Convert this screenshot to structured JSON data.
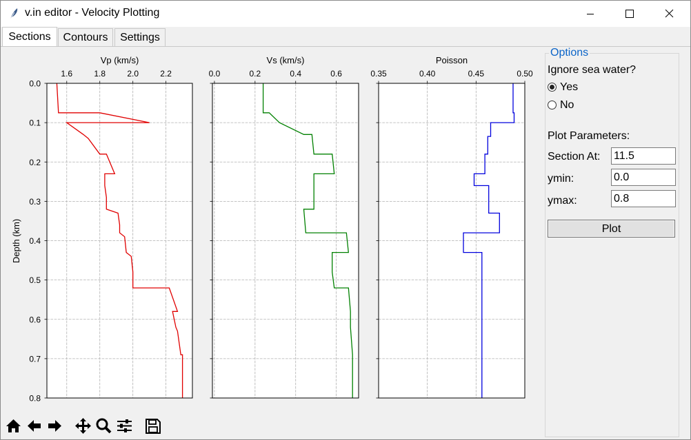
{
  "window": {
    "title": "v.in editor - Velocity Plotting",
    "icon": "feather-icon",
    "controls": [
      "minimize-icon",
      "maximize-icon",
      "close-icon"
    ]
  },
  "tabs": [
    {
      "label": "Sections",
      "active": true
    },
    {
      "label": "Contours",
      "active": false
    },
    {
      "label": "Settings",
      "active": false
    }
  ],
  "options": {
    "legend": "Options",
    "ignore_sea_water_label": "Ignore sea water?",
    "radio_yes": "Yes",
    "radio_no": "No",
    "selected": "Yes",
    "plot_params_label": "Plot Parameters:",
    "section_at_label": "Section At:",
    "section_at_value": "11.5",
    "ymin_label": "ymin:",
    "ymin_value": "0.0",
    "ymax_label": "ymax:",
    "ymax_value": "0.8",
    "plot_button": "Plot"
  },
  "toolbar": [
    "home-icon",
    "back-arrow-icon",
    "forward-arrow-icon",
    "pan-icon",
    "zoom-icon",
    "configure-subplots-icon",
    "save-icon"
  ],
  "chart_data": [
    {
      "type": "line",
      "title": "Vp (km/s)",
      "xlabel": "Vp (km/s)",
      "ylabel": "Depth (km)",
      "xlim": [
        1.48,
        2.36
      ],
      "ylim": [
        0.8,
        0.0
      ],
      "xticks": [
        "1.6",
        "1.8",
        "2.0",
        "2.2"
      ],
      "xtick_values": [
        1.6,
        1.8,
        2.0,
        2.2
      ],
      "yticks": [
        "0.0",
        "0.1",
        "0.2",
        "0.3",
        "0.4",
        "0.5",
        "0.6",
        "0.7",
        "0.8"
      ],
      "grid": true,
      "color": "#e00000",
      "series": [
        {
          "x": [
            1.54,
            1.55,
            1.8,
            2.1,
            1.6,
            1.7,
            1.73,
            1.8,
            1.84,
            1.89,
            1.83,
            1.83,
            1.84,
            1.84,
            1.91,
            1.92,
            1.92,
            1.95,
            1.96,
            1.99,
            2.0,
            2.0,
            2.22,
            2.27,
            2.24,
            2.26,
            2.27,
            2.29,
            2.3,
            2.3
          ],
          "y": [
            0.0,
            0.075,
            0.075,
            0.1,
            0.1,
            0.13,
            0.14,
            0.18,
            0.18,
            0.23,
            0.23,
            0.26,
            0.29,
            0.32,
            0.33,
            0.36,
            0.38,
            0.39,
            0.43,
            0.44,
            0.48,
            0.52,
            0.52,
            0.58,
            0.58,
            0.62,
            0.63,
            0.69,
            0.69,
            0.8
          ]
        }
      ]
    },
    {
      "type": "line",
      "title": "Vs (km/s)",
      "xlabel": "Vs (km/s)",
      "xlim": [
        -0.01,
        0.71
      ],
      "ylim": [
        0.8,
        0.0
      ],
      "xticks": [
        "0.0",
        "0.2",
        "0.4",
        "0.6"
      ],
      "xtick_values": [
        0.0,
        0.2,
        0.4,
        0.6
      ],
      "grid": true,
      "color": "#008000",
      "series": [
        {
          "x": [
            0.24,
            0.24,
            0.27,
            0.32,
            0.44,
            0.48,
            0.49,
            0.58,
            0.59,
            0.49,
            0.49,
            0.44,
            0.45,
            0.65,
            0.66,
            0.58,
            0.58,
            0.59,
            0.66,
            0.67,
            0.67,
            0.68,
            0.68
          ],
          "y": [
            0.0,
            0.075,
            0.075,
            0.1,
            0.13,
            0.13,
            0.18,
            0.18,
            0.23,
            0.23,
            0.32,
            0.32,
            0.38,
            0.38,
            0.43,
            0.43,
            0.48,
            0.52,
            0.52,
            0.58,
            0.62,
            0.69,
            0.8
          ]
        }
      ]
    },
    {
      "type": "line",
      "title": "Poisson",
      "xlabel": "Poisson",
      "xlim": [
        0.35,
        0.5
      ],
      "ylim": [
        0.8,
        0.0
      ],
      "xticks": [
        "0.35",
        "0.40",
        "0.45",
        "0.50"
      ],
      "xtick_values": [
        0.35,
        0.4,
        0.45,
        0.5
      ],
      "grid": true,
      "color": "#0000dd",
      "series": [
        {
          "x": [
            0.488,
            0.488,
            0.489,
            0.489,
            0.465,
            0.465,
            0.462,
            0.462,
            0.459,
            0.459,
            0.448,
            0.448,
            0.463,
            0.463,
            0.464,
            0.464,
            0.474,
            0.474,
            0.437,
            0.437,
            0.456,
            0.456
          ],
          "y": [
            0.0,
            0.075,
            0.075,
            0.1,
            0.1,
            0.135,
            0.135,
            0.18,
            0.18,
            0.23,
            0.23,
            0.26,
            0.26,
            0.33,
            0.33,
            0.33,
            0.33,
            0.38,
            0.38,
            0.43,
            0.43,
            0.8
          ]
        }
      ]
    }
  ]
}
